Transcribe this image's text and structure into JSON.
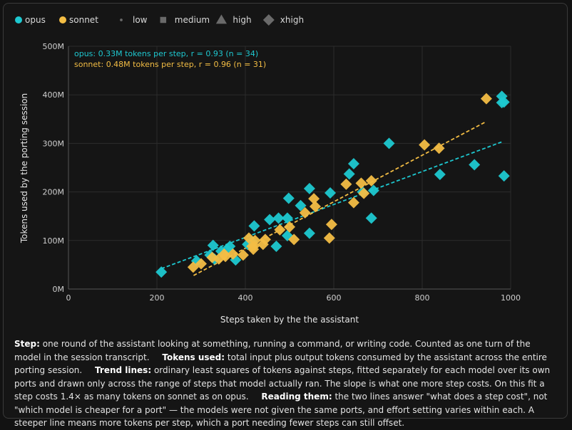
{
  "chart_data": {
    "type": "scatter",
    "xlabel": "Steps taken by the the assistant",
    "ylabel": "Tokens used by the porting session",
    "xlim": [
      0,
      1000
    ],
    "ylim": [
      0,
      500
    ],
    "x_ticks": [
      0,
      200,
      400,
      600,
      800,
      1000
    ],
    "y_ticks": [
      0,
      100,
      200,
      300,
      400,
      500
    ],
    "x_tick_labels": [
      "0",
      "200",
      "400",
      "600",
      "800",
      "1000"
    ],
    "y_tick_labels": [
      "0M",
      "100M",
      "200M",
      "300M",
      "400M",
      "500M"
    ],
    "grid": true,
    "legend_position": "top-left",
    "legend": {
      "models": [
        {
          "name": "opus",
          "color": "#1ec8d0"
        },
        {
          "name": "sonnet",
          "color": "#f3bd44"
        }
      ],
      "efforts": [
        {
          "name": "low",
          "shape": "circle"
        },
        {
          "name": "medium",
          "shape": "square"
        },
        {
          "name": "high",
          "shape": "triangle"
        },
        {
          "name": "xhigh",
          "shape": "diamond"
        }
      ]
    },
    "annotations": [
      {
        "text": "opus: 0.33M tokens per step, r = 0.93 (n = 34)",
        "series": "opus"
      },
      {
        "text": "sonnet: 0.48M tokens per step, r = 0.96 (n = 31)",
        "series": "sonnet"
      }
    ],
    "series": [
      {
        "name": "opus",
        "color": "#1ec8d0",
        "trend": {
          "x": [
            210,
            980
          ],
          "y": [
            42,
            303
          ]
        },
        "points": [
          {
            "x": 210,
            "y": 35,
            "effort": "low"
          },
          {
            "x": 290,
            "y": 58,
            "effort": "low"
          },
          {
            "x": 320,
            "y": 70,
            "effort": "low"
          },
          {
            "x": 378,
            "y": 60,
            "effort": "low"
          },
          {
            "x": 455,
            "y": 143,
            "effort": "low"
          },
          {
            "x": 470,
            "y": 88,
            "effort": "low"
          },
          {
            "x": 592,
            "y": 198,
            "effort": "low"
          },
          {
            "x": 685,
            "y": 146,
            "effort": "low"
          },
          {
            "x": 690,
            "y": 203,
            "effort": "low"
          },
          {
            "x": 918,
            "y": 256,
            "effort": "low"
          },
          {
            "x": 330,
            "y": 62,
            "effort": "medium"
          },
          {
            "x": 345,
            "y": 78,
            "effort": "medium"
          },
          {
            "x": 358,
            "y": 82,
            "effort": "medium"
          },
          {
            "x": 365,
            "y": 88,
            "effort": "medium"
          },
          {
            "x": 405,
            "y": 92,
            "effort": "medium"
          },
          {
            "x": 415,
            "y": 98,
            "effort": "medium"
          },
          {
            "x": 495,
            "y": 110,
            "effort": "medium"
          },
          {
            "x": 525,
            "y": 172,
            "effort": "medium"
          },
          {
            "x": 545,
            "y": 115,
            "effort": "medium"
          },
          {
            "x": 635,
            "y": 237,
            "effort": "medium"
          },
          {
            "x": 665,
            "y": 200,
            "effort": "medium"
          },
          {
            "x": 985,
            "y": 233,
            "effort": "medium"
          },
          {
            "x": 327,
            "y": 90,
            "effort": "high"
          },
          {
            "x": 420,
            "y": 130,
            "effort": "high"
          },
          {
            "x": 475,
            "y": 146,
            "effort": "high"
          },
          {
            "x": 495,
            "y": 146,
            "effort": "high"
          },
          {
            "x": 498,
            "y": 187,
            "effort": "high"
          },
          {
            "x": 645,
            "y": 258,
            "effort": "high"
          },
          {
            "x": 725,
            "y": 300,
            "effort": "high"
          },
          {
            "x": 980,
            "y": 384,
            "effort": "high"
          },
          {
            "x": 980,
            "y": 397,
            "effort": "high"
          },
          {
            "x": 545,
            "y": 207,
            "effort": "xhigh"
          },
          {
            "x": 840,
            "y": 236,
            "effort": "xhigh"
          },
          {
            "x": 985,
            "y": 385,
            "effort": "low"
          }
        ]
      },
      {
        "name": "sonnet",
        "color": "#f3bd44",
        "trend": {
          "x": [
            283,
            945
          ],
          "y": [
            28,
            345
          ]
        },
        "points": [
          {
            "x": 282,
            "y": 45,
            "effort": "low"
          },
          {
            "x": 300,
            "y": 52,
            "effort": "low"
          },
          {
            "x": 340,
            "y": 62,
            "effort": "low"
          },
          {
            "x": 355,
            "y": 67,
            "effort": "low"
          },
          {
            "x": 372,
            "y": 72,
            "effort": "low"
          },
          {
            "x": 395,
            "y": 70,
            "effort": "low"
          },
          {
            "x": 440,
            "y": 92,
            "effort": "low"
          },
          {
            "x": 595,
            "y": 133,
            "effort": "low"
          },
          {
            "x": 325,
            "y": 65,
            "effort": "medium"
          },
          {
            "x": 352,
            "y": 72,
            "effort": "medium"
          },
          {
            "x": 408,
            "y": 105,
            "effort": "medium"
          },
          {
            "x": 418,
            "y": 82,
            "effort": "medium"
          },
          {
            "x": 445,
            "y": 102,
            "effort": "medium"
          },
          {
            "x": 478,
            "y": 122,
            "effort": "medium"
          },
          {
            "x": 510,
            "y": 102,
            "effort": "medium"
          },
          {
            "x": 590,
            "y": 105,
            "effort": "medium"
          },
          {
            "x": 645,
            "y": 178,
            "effort": "medium"
          },
          {
            "x": 668,
            "y": 197,
            "effort": "medium"
          },
          {
            "x": 945,
            "y": 392,
            "effort": "medium"
          },
          {
            "x": 422,
            "y": 100,
            "effort": "high"
          },
          {
            "x": 535,
            "y": 157,
            "effort": "high"
          },
          {
            "x": 555,
            "y": 186,
            "effort": "high"
          },
          {
            "x": 558,
            "y": 170,
            "effort": "high"
          },
          {
            "x": 628,
            "y": 216,
            "effort": "high"
          },
          {
            "x": 662,
            "y": 218,
            "effort": "high"
          },
          {
            "x": 805,
            "y": 297,
            "effort": "high"
          },
          {
            "x": 838,
            "y": 290,
            "effort": "high"
          },
          {
            "x": 685,
            "y": 223,
            "effort": "xhigh"
          },
          {
            "x": 420,
            "y": 89,
            "effort": "low"
          },
          {
            "x": 415,
            "y": 88,
            "effort": "medium"
          },
          {
            "x": 500,
            "y": 128,
            "effort": "low"
          }
        ]
      }
    ]
  },
  "caption": [
    {
      "label": "Step:",
      "text": " one round of the assistant looking at something, running a command, or writing code. Counted as one turn of the model in the session transcript."
    },
    {
      "label": "Tokens used:",
      "text": " total input plus output tokens consumed by the assistant across the entire porting session."
    },
    {
      "label": "Trend lines:",
      "text": " ordinary least squares of tokens against steps, fitted separately for each model over its own ports and drawn only across the range of steps that model actually ran. The slope is what one more step costs. On this fit a step costs 1.4× as many tokens on sonnet as on opus."
    },
    {
      "label": "Reading them:",
      "text": " the two lines answer \"what does a step cost\", not \"which model is cheaper for a port\" — the models were not given the same ports, and effort setting varies within each. A steeper line means more tokens per step, which a port needing fewer steps can still offset."
    }
  ]
}
